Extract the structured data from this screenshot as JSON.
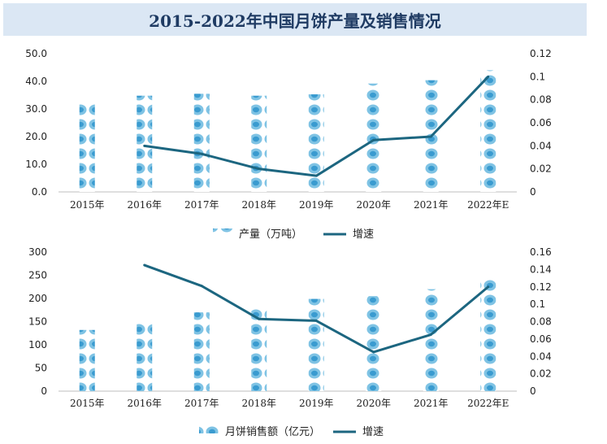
{
  "title": "2015-2022年中国月饼产量及销售情况",
  "colors": {
    "bar": "#7fc3e4",
    "bar_dark": "#3a9bd0",
    "line": "#1c6680",
    "title_bg": "#dbe7f4"
  },
  "chart_data": [
    {
      "type": "bar",
      "categories": [
        "2015年",
        "2016年",
        "2017年",
        "2018年",
        "2019年",
        "2020年",
        "2021年",
        "2022年E"
      ],
      "series": [
        {
          "name": "产量（万吨）",
          "type": "bar",
          "axis": "left",
          "values": [
            32.2,
            34.8,
            35.5,
            34.8,
            35.3,
            39.2,
            40.4,
            44.0
          ]
        },
        {
          "name": "增速",
          "type": "line",
          "axis": "right",
          "values": [
            null,
            0.04,
            0.033,
            0.02,
            0.014,
            0.045,
            0.048,
            0.1
          ]
        }
      ],
      "y_left": {
        "ylim": [
          0,
          50
        ],
        "ticks": [
          "0.0",
          "10.0",
          "20.0",
          "30.0",
          "40.0",
          "50.0"
        ]
      },
      "y_right": {
        "ylim": [
          0,
          0.12
        ],
        "ticks": [
          "0",
          "0.02",
          "0.04",
          "0.06",
          "0.08",
          "0.1",
          "0.12"
        ]
      },
      "legend_position": "bottom"
    },
    {
      "type": "bar",
      "categories": [
        "2015年",
        "2016年",
        "2017年",
        "2018年",
        "2019年",
        "2020年",
        "2021年",
        "2022年E"
      ],
      "series": [
        {
          "name": "月饼销售额（亿元）",
          "type": "bar",
          "axis": "left",
          "values": [
            132,
            150,
            170,
            184,
            199,
            205,
            220,
            242
          ]
        },
        {
          "name": "增速",
          "type": "line",
          "axis": "right",
          "values": [
            null,
            0.145,
            0.121,
            0.083,
            0.081,
            0.045,
            0.065,
            0.12
          ]
        }
      ],
      "y_left": {
        "ylim": [
          0,
          300
        ],
        "ticks": [
          "0",
          "50",
          "100",
          "150",
          "200",
          "250",
          "300"
        ]
      },
      "y_right": {
        "ylim": [
          0,
          0.16
        ],
        "ticks": [
          "0",
          "0.02",
          "0.04",
          "0.06",
          "0.08",
          "0.1",
          "0.12",
          "0.14",
          "0.16"
        ]
      },
      "legend_position": "bottom"
    }
  ]
}
